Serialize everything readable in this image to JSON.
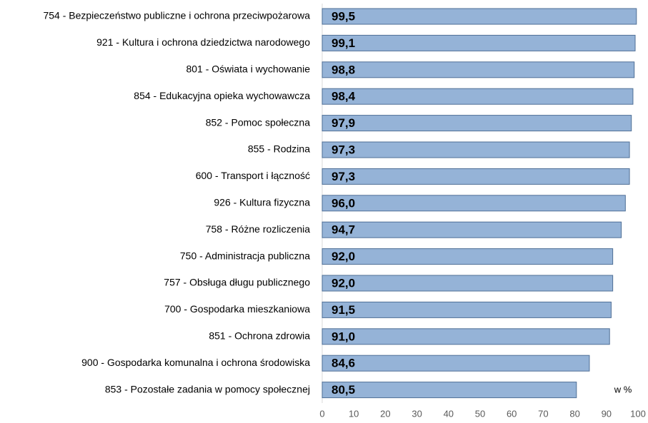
{
  "chart_data": {
    "type": "bar",
    "orientation": "horizontal",
    "categories": [
      "754 - Bezpieczeństwo publiczne i ochrona przeciwpożarowa",
      "921 - Kultura i ochrona dziedzictwa narodowego",
      "801 - Oświata i wychowanie",
      "854 - Edukacyjna opieka wychowawcza",
      "852 - Pomoc społeczna",
      "855 - Rodzina",
      "600 - Transport i łączność",
      "926 - Kultura fizyczna",
      "758 - Różne rozliczenia",
      "750 - Administracja publiczna",
      "757 - Obsługa długu publicznego",
      "700 - Gospodarka mieszkaniowa",
      "851 - Ochrona zdrowia",
      "900 - Gospodarka komunalna i ochrona środowiska",
      "853 - Pozostałe zadania w pomocy społecznej"
    ],
    "values": [
      99.5,
      99.1,
      98.8,
      98.4,
      97.9,
      97.3,
      97.3,
      96.0,
      94.7,
      92.0,
      92.0,
      91.5,
      91.0,
      84.6,
      80.5
    ],
    "value_labels": [
      "99,5",
      "99,1",
      "98,8",
      "98,4",
      "97,9",
      "97,3",
      "97,3",
      "96,0",
      "94,7",
      "92,0",
      "92,0",
      "91,5",
      "91,0",
      "84,6",
      "80,5"
    ],
    "color": "#95b3d7",
    "xlim": [
      0,
      100
    ],
    "xticks": [
      0,
      10,
      20,
      30,
      40,
      50,
      60,
      70,
      80,
      90,
      100
    ],
    "annotation": "w %"
  }
}
